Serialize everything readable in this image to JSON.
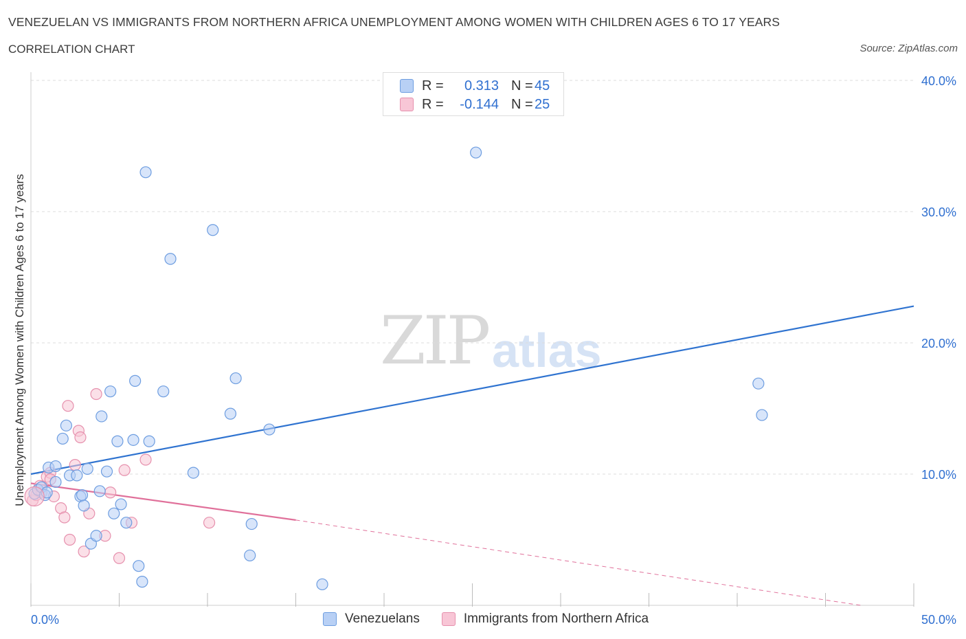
{
  "header": {
    "title": "VENEZUELAN VS IMMIGRANTS FROM NORTHERN AFRICA UNEMPLOYMENT AMONG WOMEN WITH CHILDREN AGES 6 TO 17 YEARS",
    "subtitle": "CORRELATION CHART",
    "source": "Source: ZipAtlas.com"
  },
  "watermark": {
    "zip": "ZIP",
    "atlas": "atlas"
  },
  "legend": {
    "rows": [
      {
        "r_label": "R =",
        "r_value": "0.313",
        "n_label": "N =",
        "n_value": "45"
      },
      {
        "r_label": "R =",
        "r_value": "-0.144",
        "n_label": "N =",
        "n_value": "25"
      }
    ]
  },
  "bottom_legend": {
    "series_a": "Venezuelans",
    "series_b": "Immigrants from Northern Africa"
  },
  "colors": {
    "blue_fill": "#b8d0f5",
    "blue_stroke": "#6d9de0",
    "blue_line": "#2f73d0",
    "pink_fill": "#f8c6d6",
    "pink_stroke": "#e690ad",
    "pink_line": "#e0709a",
    "axis_text": "#2f6fd0",
    "grid": "#dddddd"
  },
  "chart_data": {
    "type": "scatter",
    "title": "VENEZUELAN VS IMMIGRANTS FROM NORTHERN AFRICA UNEMPLOYMENT AMONG WOMEN WITH CHILDREN AGES 6 TO 17 YEARS",
    "xlabel": "",
    "ylabel": "Unemployment Among Women with Children Ages 6 to 17 years",
    "xlim": [
      0,
      50
    ],
    "ylim": [
      0,
      40
    ],
    "x_tick_labels": [
      "0.0%",
      "50.0%"
    ],
    "y_ticks": [
      10,
      20,
      30,
      40
    ],
    "y_tick_labels": [
      "10.0%",
      "20.0%",
      "30.0%",
      "40.0%"
    ],
    "grid": true,
    "legend_position": "top-center",
    "series": [
      {
        "name": "Venezuelans",
        "color": "#6d9de0",
        "r": 0.313,
        "n": 45,
        "trend": {
          "x": [
            0,
            50
          ],
          "y": [
            10.0,
            22.8
          ],
          "style": "solid"
        },
        "points": [
          [
            0.2,
            8.5
          ],
          [
            0.4,
            8.8
          ],
          [
            0.6,
            9.0
          ],
          [
            0.8,
            8.4
          ],
          [
            0.9,
            8.6
          ],
          [
            1.0,
            10.5
          ],
          [
            1.4,
            9.4
          ],
          [
            1.4,
            10.6
          ],
          [
            1.8,
            12.7
          ],
          [
            2.0,
            13.7
          ],
          [
            2.2,
            9.9
          ],
          [
            2.6,
            9.9
          ],
          [
            2.8,
            8.3
          ],
          [
            2.9,
            8.4
          ],
          [
            3.0,
            7.6
          ],
          [
            3.2,
            10.4
          ],
          [
            3.4,
            4.7
          ],
          [
            3.7,
            5.3
          ],
          [
            3.9,
            8.7
          ],
          [
            4.0,
            14.4
          ],
          [
            4.3,
            10.2
          ],
          [
            4.5,
            16.3
          ],
          [
            4.7,
            7.0
          ],
          [
            4.9,
            12.5
          ],
          [
            5.1,
            7.7
          ],
          [
            5.4,
            6.3
          ],
          [
            5.8,
            12.6
          ],
          [
            5.9,
            17.1
          ],
          [
            6.1,
            3.0
          ],
          [
            6.3,
            1.8
          ],
          [
            6.5,
            33.0
          ],
          [
            6.7,
            12.5
          ],
          [
            7.5,
            16.3
          ],
          [
            7.9,
            26.4
          ],
          [
            9.2,
            10.1
          ],
          [
            10.3,
            28.6
          ],
          [
            11.3,
            14.6
          ],
          [
            11.6,
            17.3
          ],
          [
            12.4,
            3.8
          ],
          [
            12.5,
            6.2
          ],
          [
            13.5,
            13.4
          ],
          [
            16.5,
            1.6
          ],
          [
            25.2,
            34.5
          ],
          [
            41.2,
            16.9
          ],
          [
            41.4,
            14.5
          ]
        ]
      },
      {
        "name": "Immigrants from Northern Africa",
        "color": "#e690ad",
        "r": -0.144,
        "n": 25,
        "trend": {
          "x": [
            0,
            15
          ],
          "y": [
            9.3,
            6.5
          ],
          "style": "solid",
          "extension_x": [
            15,
            47
          ],
          "extension_y": [
            6.5,
            0.0
          ],
          "extension_style": "dashed"
        },
        "points": [
          [
            0.1,
            8.0
          ],
          [
            0.3,
            8.4
          ],
          [
            0.6,
            8.6
          ],
          [
            0.9,
            9.8
          ],
          [
            1.1,
            10.1
          ],
          [
            1.1,
            9.6
          ],
          [
            1.3,
            8.3
          ],
          [
            1.7,
            7.4
          ],
          [
            1.9,
            6.7
          ],
          [
            2.1,
            15.2
          ],
          [
            2.2,
            5.0
          ],
          [
            2.5,
            10.7
          ],
          [
            2.7,
            13.3
          ],
          [
            2.8,
            12.8
          ],
          [
            3.0,
            4.1
          ],
          [
            3.3,
            7.0
          ],
          [
            3.7,
            16.1
          ],
          [
            4.2,
            5.3
          ],
          [
            4.5,
            8.6
          ],
          [
            5.0,
            3.6
          ],
          [
            5.3,
            10.3
          ],
          [
            5.7,
            6.3
          ],
          [
            6.5,
            11.1
          ],
          [
            10.1,
            6.3
          ],
          [
            0.5,
            9.1
          ]
        ]
      }
    ]
  }
}
